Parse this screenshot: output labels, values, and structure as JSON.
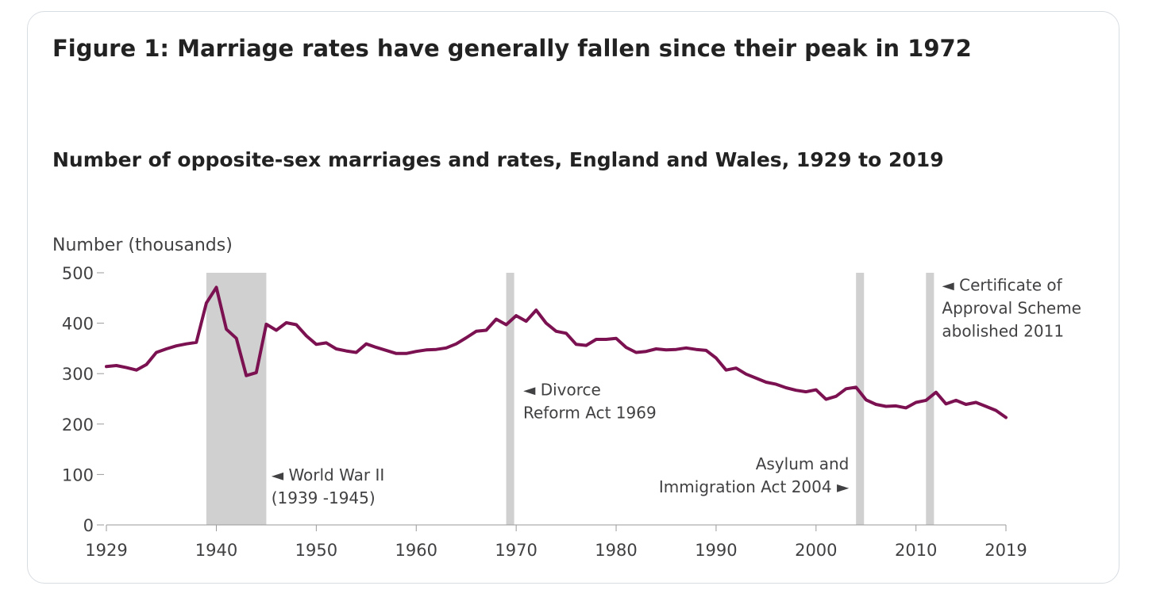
{
  "title": "Figure 1: Marriage rates have generally fallen since their peak in 1972",
  "subtitle": "Number of opposite-sex marriages and rates, England and Wales, 1929 to 2019",
  "chart_data": {
    "type": "line",
    "title": "Number of opposite-sex marriages and rates, England and Wales, 1929 to 2019",
    "ylabel": "Number (thousands)",
    "xlabel": "",
    "xlim": [
      1929,
      2019
    ],
    "ylim": [
      0,
      500
    ],
    "x_ticks": [
      1929,
      1940,
      1950,
      1960,
      1970,
      1980,
      1990,
      2000,
      2010,
      2019
    ],
    "y_ticks": [
      0,
      100,
      200,
      300,
      400,
      500
    ],
    "grid": false,
    "line_color": "#7b1150",
    "band_color": "#d0d0d0",
    "series": [
      {
        "x": [
          1929,
          1930,
          1931,
          1932,
          1933,
          1934,
          1935,
          1936,
          1937,
          1938,
          1939,
          1940,
          1941,
          1942,
          1943,
          1944,
          1945,
          1946,
          1947,
          1948,
          1949,
          1950,
          1951,
          1952,
          1953,
          1954,
          1955,
          1956,
          1957,
          1958,
          1959,
          1960,
          1961,
          1962,
          1963,
          1964,
          1965,
          1966,
          1967,
          1968,
          1969,
          1970,
          1971,
          1972,
          1973,
          1974,
          1975,
          1976,
          1977,
          1978,
          1979,
          1980,
          1981,
          1982,
          1983,
          1984,
          1985,
          1986,
          1987,
          1988,
          1989,
          1990,
          1991,
          1992,
          1993,
          1994,
          1995,
          1996,
          1997,
          1998,
          1999,
          2000,
          2001,
          2002,
          2003,
          2004,
          2005,
          2006,
          2007,
          2008,
          2009,
          2010,
          2011,
          2012,
          2013,
          2014,
          2015,
          2016,
          2017,
          2018,
          2019
        ],
        "values": [
          314,
          316,
          312,
          307,
          318,
          342,
          349,
          355,
          359,
          362,
          440,
          471,
          388,
          370,
          296,
          302,
          398,
          386,
          401,
          397,
          375,
          358,
          361,
          349,
          345,
          342,
          359,
          352,
          346,
          340,
          340,
          344,
          347,
          348,
          351,
          359,
          371,
          384,
          386,
          408,
          397,
          415,
          404,
          426,
          400,
          384,
          380,
          358,
          356,
          368,
          368,
          370,
          352,
          342,
          344,
          349,
          347,
          348,
          351,
          348,
          346,
          331,
          307,
          311,
          299,
          291,
          283,
          279,
          272,
          267,
          264,
          268,
          249,
          255,
          270,
          273,
          248,
          239,
          235,
          236,
          232,
          243,
          247,
          263,
          240,
          247,
          239,
          243,
          235,
          227,
          213
        ]
      }
    ],
    "bands": [
      {
        "from": 1939,
        "to": 1945
      },
      {
        "from": 1969,
        "to": 1969.8
      },
      {
        "from": 2004,
        "to": 2004.8
      },
      {
        "from": 2011,
        "to": 2011.8
      }
    ],
    "annotations": [
      {
        "lines": [
          "◄ World War II",
          "(1939 -1945)"
        ],
        "year": 1945.5,
        "value": 88,
        "anchor": "start"
      },
      {
        "lines": [
          "◄ Divorce",
          "Reform Act 1969"
        ],
        "year": 1970.7,
        "value": 257,
        "anchor": "start"
      },
      {
        "lines": [
          "Asylum and",
          "Immigration Act 2004 ►"
        ],
        "year": 2003.3,
        "value": 110,
        "anchor": "end"
      },
      {
        "lines": [
          "◄ Certificate of",
          "Approval Scheme",
          "abolished 2011"
        ],
        "year": 2012.6,
        "value": 465,
        "anchor": "start"
      }
    ]
  }
}
